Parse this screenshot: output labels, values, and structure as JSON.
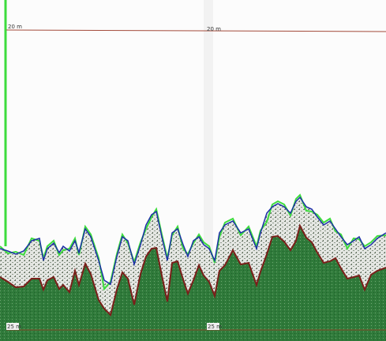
{
  "range_lines": [
    {
      "labels": [
        "20 m",
        "20 m"
      ]
    },
    {
      "labels": [
        "25 m",
        "25 m"
      ]
    }
  ]
}
